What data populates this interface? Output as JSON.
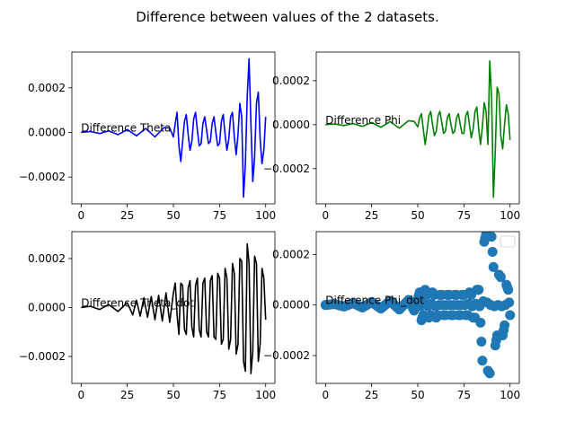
{
  "figure": {
    "suptitle": "Difference between values of the 2 datasets."
  },
  "chart_data": [
    {
      "type": "line",
      "annotation": "Difference Theta",
      "color": "#0000ff",
      "xlim": [
        -5,
        105
      ],
      "ylim": [
        -0.00032,
        0.00036
      ],
      "xticks": [
        0,
        25,
        50,
        75,
        100
      ],
      "xtick_labels": [
        "0",
        "25",
        "50",
        "75",
        "100"
      ],
      "yticks": [
        -0.0002,
        0.0,
        0.0002
      ],
      "ytick_labels": [
        "−0.0002",
        "0.0000",
        "0.0002"
      ],
      "grid": false,
      "x": [
        0,
        5,
        10,
        15,
        20,
        25,
        30,
        35,
        40,
        45,
        48,
        50,
        51,
        52,
        53,
        54,
        55,
        56,
        57,
        58,
        59,
        60,
        61,
        62,
        63,
        64,
        65,
        66,
        67,
        68,
        69,
        70,
        71,
        72,
        73,
        74,
        75,
        76,
        77,
        78,
        79,
        80,
        81,
        82,
        83,
        84,
        85,
        86,
        87,
        88,
        89,
        90,
        91,
        92,
        93,
        94,
        95,
        96,
        97,
        98,
        99,
        100
      ],
      "y": [
        0,
        4e-06,
        -5e-06,
        7e-06,
        -1e-05,
        1.3e-05,
        -1.5e-05,
        1.8e-05,
        -2e-05,
        2.2e-05,
        2e-05,
        -2e-05,
        4e-05,
        9e-05,
        -6e-05,
        -0.00013,
        -4e-05,
        5e-05,
        8e-05,
        -1e-05,
        -8e-05,
        -4e-05,
        6e-05,
        9e-05,
        1e-05,
        -6e-05,
        -5e-05,
        4e-05,
        7e-05,
        1e-05,
        -5e-05,
        -4e-05,
        4e-05,
        7e-05,
        0.0,
        -6e-05,
        -5e-05,
        5e-05,
        8e-05,
        -1e-05,
        -8e-05,
        -3e-05,
        7e-05,
        9e-05,
        -2e-05,
        -0.0001,
        -1e-05,
        0.00013,
        7e-05,
        -0.00029,
        -0.00014,
        0.00016,
        0.00033,
        4e-05,
        -0.00022,
        -0.00011,
        0.00013,
        0.00018,
        -3e-05,
        -0.00014,
        -8e-05,
        7e-05
      ]
    },
    {
      "type": "line",
      "annotation": "Difference Phi",
      "color": "#008000",
      "xlim": [
        -5,
        105
      ],
      "ylim": [
        -0.00036,
        0.00033
      ],
      "xticks": [
        0,
        25,
        50,
        75,
        100
      ],
      "xtick_labels": [
        "0",
        "25",
        "50",
        "75",
        "100"
      ],
      "yticks": [
        -0.0002,
        0.0,
        0.0002
      ],
      "ytick_labels": [
        "−0.0002",
        "0.0000",
        "0.0002"
      ],
      "grid": false,
      "x": [
        0,
        5,
        10,
        15,
        20,
        25,
        30,
        35,
        40,
        45,
        48,
        50,
        51,
        52,
        53,
        54,
        55,
        56,
        57,
        58,
        59,
        60,
        61,
        62,
        63,
        64,
        65,
        66,
        67,
        68,
        69,
        70,
        71,
        72,
        73,
        74,
        75,
        76,
        77,
        78,
        79,
        80,
        81,
        82,
        83,
        84,
        85,
        86,
        87,
        88,
        89,
        90,
        91,
        92,
        93,
        94,
        95,
        96,
        97,
        98,
        99,
        100
      ],
      "y": [
        0,
        3e-06,
        -4e-06,
        5e-06,
        -8e-06,
        1e-05,
        -1.2e-05,
        1.4e-05,
        -1.6e-05,
        1.8e-05,
        1.5e-05,
        -1e-05,
        3e-05,
        5e-05,
        -2e-05,
        -9e-05,
        -3e-05,
        4e-05,
        6e-05,
        0.0,
        -5e-05,
        -3e-05,
        4e-05,
        6e-05,
        1e-05,
        -4e-05,
        -3e-05,
        3e-05,
        5e-05,
        0.0,
        -4e-05,
        -3e-05,
        3e-05,
        5e-05,
        0.0,
        -4e-05,
        -4e-05,
        4e-05,
        6e-05,
        0.0,
        -6e-05,
        -2e-05,
        6e-05,
        8e-05,
        -2e-05,
        -9e-05,
        -1e-05,
        0.0001,
        6e-05,
        -9e-05,
        0.00029,
        0.00012,
        -0.00033,
        -0.00012,
        0.00017,
        0.00014,
        -5e-05,
        -0.00011,
        0.0,
        9e-05,
        5e-05,
        -7e-05
      ]
    },
    {
      "type": "line",
      "annotation": "Difference Theta_dot",
      "color": "#000000",
      "xlim": [
        -5,
        105
      ],
      "ylim": [
        -0.00031,
        0.00031
      ],
      "xticks": [
        0,
        25,
        50,
        75,
        100
      ],
      "xtick_labels": [
        "0",
        "25",
        "50",
        "75",
        "100"
      ],
      "yticks": [
        -0.0002,
        0.0,
        0.0002
      ],
      "ytick_labels": [
        "−0.0002",
        "0.0000",
        "0.0002"
      ],
      "grid": false,
      "x": [
        0,
        5,
        10,
        15,
        20,
        25,
        28,
        30,
        32,
        34,
        36,
        38,
        40,
        42,
        44,
        46,
        48,
        50,
        51,
        52,
        53,
        54,
        55,
        56,
        57,
        58,
        59,
        60,
        61,
        62,
        63,
        64,
        65,
        66,
        67,
        68,
        69,
        70,
        71,
        72,
        73,
        74,
        75,
        76,
        77,
        78,
        79,
        80,
        81,
        82,
        83,
        84,
        85,
        86,
        87,
        88,
        89,
        90,
        91,
        92,
        93,
        94,
        95,
        96,
        97,
        98,
        99,
        100
      ],
      "y": [
        0,
        5e-06,
        -8e-06,
        1.2e-05,
        -1.6e-05,
        2e-05,
        -3e-05,
        3e-05,
        -3.5e-05,
        4e-05,
        -4e-05,
        4.5e-05,
        -5e-05,
        5e-05,
        -5.5e-05,
        6e-05,
        -6e-05,
        6e-05,
        0.0001,
        -3e-05,
        -0.00011,
        0.0001,
        9e-05,
        -9e-05,
        -0.00011,
        8e-05,
        0.00011,
        -8e-05,
        -0.00012,
        9e-05,
        0.00012,
        -9e-05,
        -0.00012,
        0.0001,
        0.00012,
        -0.0001,
        -0.00012,
        0.00011,
        0.00013,
        -0.00012,
        -0.00013,
        0.00014,
        0.00012,
        -0.00015,
        -0.00013,
        0.00016,
        0.00012,
        -0.00017,
        -0.00013,
        0.00018,
        0.00014,
        -0.00019,
        -0.00015,
        0.0002,
        0.00019,
        -0.00022,
        -0.00026,
        0.00026,
        0.00018,
        -0.00027,
        -0.00018,
        0.00021,
        0.00018,
        -0.00022,
        -0.00015,
        0.00016,
        0.00012,
        -5e-05
      ]
    },
    {
      "type": "scatter",
      "annotation": "Difference Phi_dot",
      "color": "#1f77b4",
      "legend": "top-right",
      "xlim": [
        -5,
        105
      ],
      "ylim": [
        -0.00031,
        0.00029
      ],
      "xticks": [
        0,
        25,
        50,
        75,
        100
      ],
      "xtick_labels": [
        "0",
        "25",
        "50",
        "75",
        "100"
      ],
      "yticks": [
        -0.0002,
        0.0,
        0.0002
      ],
      "ytick_labels": [
        "−0.0002",
        "0.0000",
        "0.0002"
      ],
      "grid": false,
      "x": [
        0,
        5,
        10,
        15,
        20,
        25,
        30,
        35,
        40,
        45,
        48,
        50,
        51,
        52,
        53,
        54,
        55,
        56,
        57,
        58,
        59,
        60,
        61,
        62,
        63,
        64,
        65,
        66,
        67,
        68,
        69,
        70,
        71,
        72,
        73,
        74,
        75,
        76,
        77,
        78,
        79,
        80,
        81,
        82,
        83,
        84,
        85,
        86,
        87,
        88,
        89,
        90,
        91,
        92,
        93,
        94,
        95,
        96,
        97,
        98,
        99,
        100
      ],
      "y": [
        0,
        4e-06,
        -6e-06,
        8e-06,
        -1e-05,
        1.2e-05,
        -1.4e-05,
        1.6e-05,
        -1.8e-05,
        2e-05,
        -2.2e-05,
        2.4e-05,
        5e-05,
        -6e-05,
        -4e-05,
        6e-05,
        4e-05,
        -5e-05,
        -4e-05,
        5e-05,
        4e-05,
        -5e-05,
        -4e-05,
        4e-05,
        4e-05,
        -4e-05,
        -4e-05,
        4e-05,
        4e-05,
        -4e-05,
        -4e-05,
        4e-05,
        4e-05,
        -4e-05,
        -4e-05,
        4e-05,
        4e-05,
        -4e-05,
        -4e-05,
        5e-05,
        4e-05,
        -5e-05,
        -5e-05,
        6e-05,
        6e-05,
        -7e-05,
        -0.00022,
        0.00025,
        0.00028,
        -0.00026,
        -0.00027,
        0.00027,
        0.00015,
        -0.00016,
        -0.00012,
        0.00012,
        0.00011,
        -0.00012,
        -8e-05,
        8e-05,
        6e-05,
        -4e-05
      ]
    }
  ]
}
